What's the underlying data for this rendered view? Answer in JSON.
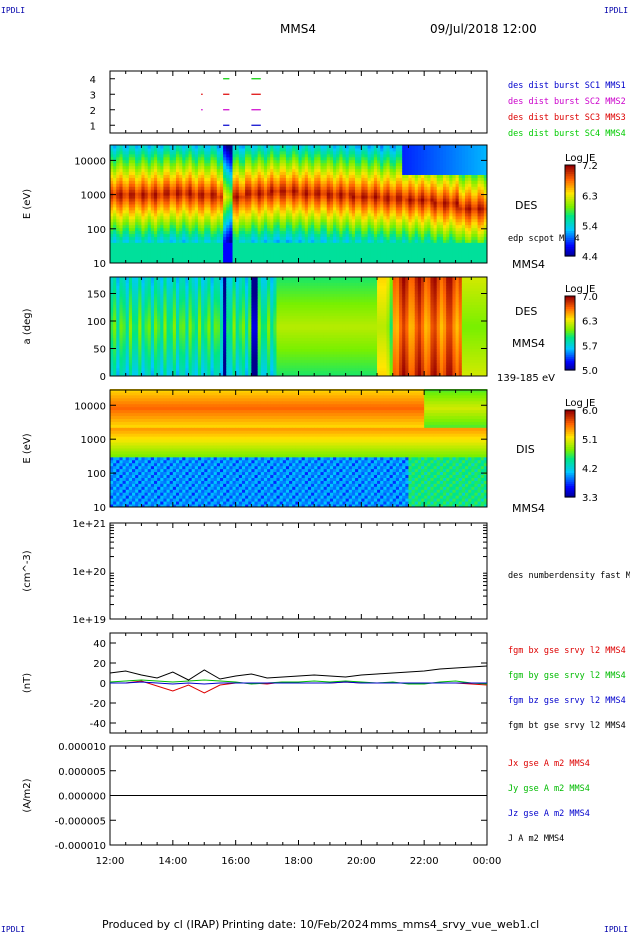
{
  "header": {
    "corner_tl": "IPDLI",
    "corner_tr": "IPDLI",
    "corner_bl": "IPDLI",
    "corner_br": "IPDLI",
    "spacecraft": "MMS4",
    "datetime": "09/Jul/2018 12:00"
  },
  "footer": {
    "produced": "Produced by cl (IRAP)",
    "printing": "Printing date: 10/Feb/2024",
    "filename": "mms_mms4_srvy_vue_web1.cl"
  },
  "colors": {
    "sc1": "#0000cc",
    "sc2": "#cc00cc",
    "sc3": "#dd0000",
    "sc4": "#00cc00",
    "bx": "#dd0000",
    "by": "#00bb00",
    "bz": "#0000cc",
    "bt": "#000000"
  },
  "chart_data": [
    {
      "type": "scatter",
      "panel": "burst-availability",
      "yticks": [
        "1",
        "2",
        "3",
        "4"
      ],
      "ylim": [
        0.5,
        4.5
      ],
      "x_unit": "hours since 12:00",
      "segments": [
        {
          "sc": 4,
          "x": [
            [
              15.6,
              15.8
            ],
            [
              16.5,
              16.8
            ]
          ]
        },
        {
          "sc": 3,
          "x": [
            [
              14.9,
              14.95
            ],
            [
              15.6,
              15.8
            ],
            [
              16.5,
              16.8
            ]
          ]
        },
        {
          "sc": 2,
          "x": [
            [
              14.9,
              14.95
            ],
            [
              15.6,
              15.8
            ],
            [
              16.5,
              16.8
            ]
          ]
        },
        {
          "sc": 1,
          "x": [
            [
              15.6,
              15.8
            ],
            [
              16.5,
              16.8
            ]
          ]
        }
      ],
      "legend": [
        "des dist burst SC1 MMS1",
        "des dist burst SC2 MMS2",
        "des dist burst SC3 MMS3",
        "des dist burst SC4 MMS4"
      ]
    },
    {
      "type": "heatmap",
      "panel": "des-energy",
      "ylabel": "E (eV)",
      "yticks": [
        "10",
        "100",
        "1000",
        "10000"
      ],
      "ylim_log10": [
        1,
        4.45
      ],
      "label": "DES",
      "sublabel": "edp scpot MMS4",
      "bottom_label": "MMS4",
      "colorbar": {
        "title": "Log JE",
        "ticks": [
          "7.2",
          "6.3",
          "5.4",
          "4.4"
        ],
        "range": [
          4.4,
          7.2
        ]
      },
      "peak_log10E": [
        3.0,
        3.0,
        3.05,
        3.0,
        2.95,
        3.05,
        3.1,
        3.05,
        3.0,
        2.95,
        2.9,
        2.85,
        2.75,
        2.6
      ],
      "low_energy_blue_from_hour": 21.3
    },
    {
      "type": "heatmap",
      "panel": "des-pitch-angle",
      "ylabel": "a (deg)",
      "yticks": [
        "0",
        "50",
        "100",
        "150"
      ],
      "ylim": [
        0,
        180
      ],
      "label": "DES",
      "sublabel": "MMS4",
      "bottom_label": "139-185 eV",
      "colorbar": {
        "title": "Log JE",
        "ticks": [
          "7.0",
          "6.3",
          "5.7",
          "5.0"
        ],
        "range": [
          5.0,
          7.0
        ]
      }
    },
    {
      "type": "heatmap",
      "panel": "dis-energy",
      "ylabel": "E (eV)",
      "yticks": [
        "10",
        "100",
        "1000",
        "10000"
      ],
      "ylim_log10": [
        1,
        4.45
      ],
      "label": "DIS",
      "bottom_label": "MMS4",
      "colorbar": {
        "title": "Log JE",
        "ticks": [
          "6.0",
          "5.1",
          "4.2",
          "3.3"
        ],
        "range": [
          3.3,
          6.0
        ]
      }
    },
    {
      "type": "line",
      "panel": "density",
      "ylabel": "(cm^-3)",
      "yticks": [
        "1e+19",
        "1e+20",
        "1e+21"
      ],
      "ylim_log10": [
        19,
        21
      ],
      "series": [
        {
          "name": "des numberdensity fast M",
          "values": []
        }
      ]
    },
    {
      "type": "line",
      "panel": "magnetic-field",
      "ylabel": "(nT)",
      "yticks": [
        "-40",
        "-20",
        "0",
        "20",
        "40"
      ],
      "ylim": [
        -50,
        50
      ],
      "x": [
        12.0,
        12.5,
        13.0,
        13.5,
        14.0,
        14.5,
        15.0,
        15.5,
        16.0,
        16.5,
        17.0,
        17.5,
        18.0,
        18.5,
        19.0,
        19.5,
        20.0,
        20.5,
        21.0,
        21.5,
        22.0,
        22.5,
        23.0,
        23.5,
        24.0
      ],
      "series": [
        {
          "name": "fgm bx gse srvy l2 MMS4",
          "values": [
            0,
            0,
            2,
            -3,
            -8,
            -2,
            -10,
            -2,
            0,
            0,
            -1,
            1,
            0,
            0,
            0,
            1,
            0,
            0,
            0,
            0,
            0,
            0,
            0,
            -1,
            -2
          ]
        },
        {
          "name": "fgm by gse srvy l2 MMS4",
          "values": [
            1,
            2,
            3,
            2,
            1,
            2,
            3,
            2,
            1,
            -1,
            0,
            1,
            1,
            2,
            1,
            2,
            1,
            0,
            1,
            -1,
            -1,
            1,
            2,
            0,
            -1
          ]
        },
        {
          "name": "fgm bz gse srvy l2 MMS4",
          "values": [
            0,
            0,
            1,
            0,
            -1,
            0,
            -1,
            0,
            0,
            0,
            0,
            0,
            0,
            0,
            0,
            1,
            0,
            0,
            0,
            0,
            0,
            0,
            0,
            0,
            0
          ]
        },
        {
          "name": "fgm bt gse srvy l2 MMS4",
          "values": [
            10,
            12,
            8,
            5,
            11,
            3,
            13,
            4,
            7,
            9,
            5,
            6,
            7,
            8,
            7,
            6,
            8,
            9,
            10,
            11,
            12,
            14,
            15,
            16,
            17
          ]
        }
      ]
    },
    {
      "type": "line",
      "panel": "current-density",
      "ylabel": "(A/m2)",
      "yticks": [
        "-0.000010",
        "-0.000005",
        "0.000000",
        "0.000005",
        "0.000010"
      ],
      "ylim": [
        -1e-05,
        1e-05
      ],
      "series": [
        {
          "name": "Jx gse A m2 MMS4",
          "values": [
            0
          ]
        },
        {
          "name": "Jy gse A m2 MMS4",
          "values": [
            0
          ]
        },
        {
          "name": "Jz gse A m2 MMS4",
          "values": [
            0
          ]
        },
        {
          "name": "J A m2 MMS4",
          "values": [
            0
          ]
        }
      ]
    }
  ],
  "xaxis": {
    "ticks": [
      "12:00",
      "14:00",
      "16:00",
      "18:00",
      "20:00",
      "22:00",
      "00:00"
    ],
    "range_hours": [
      12,
      24
    ]
  }
}
